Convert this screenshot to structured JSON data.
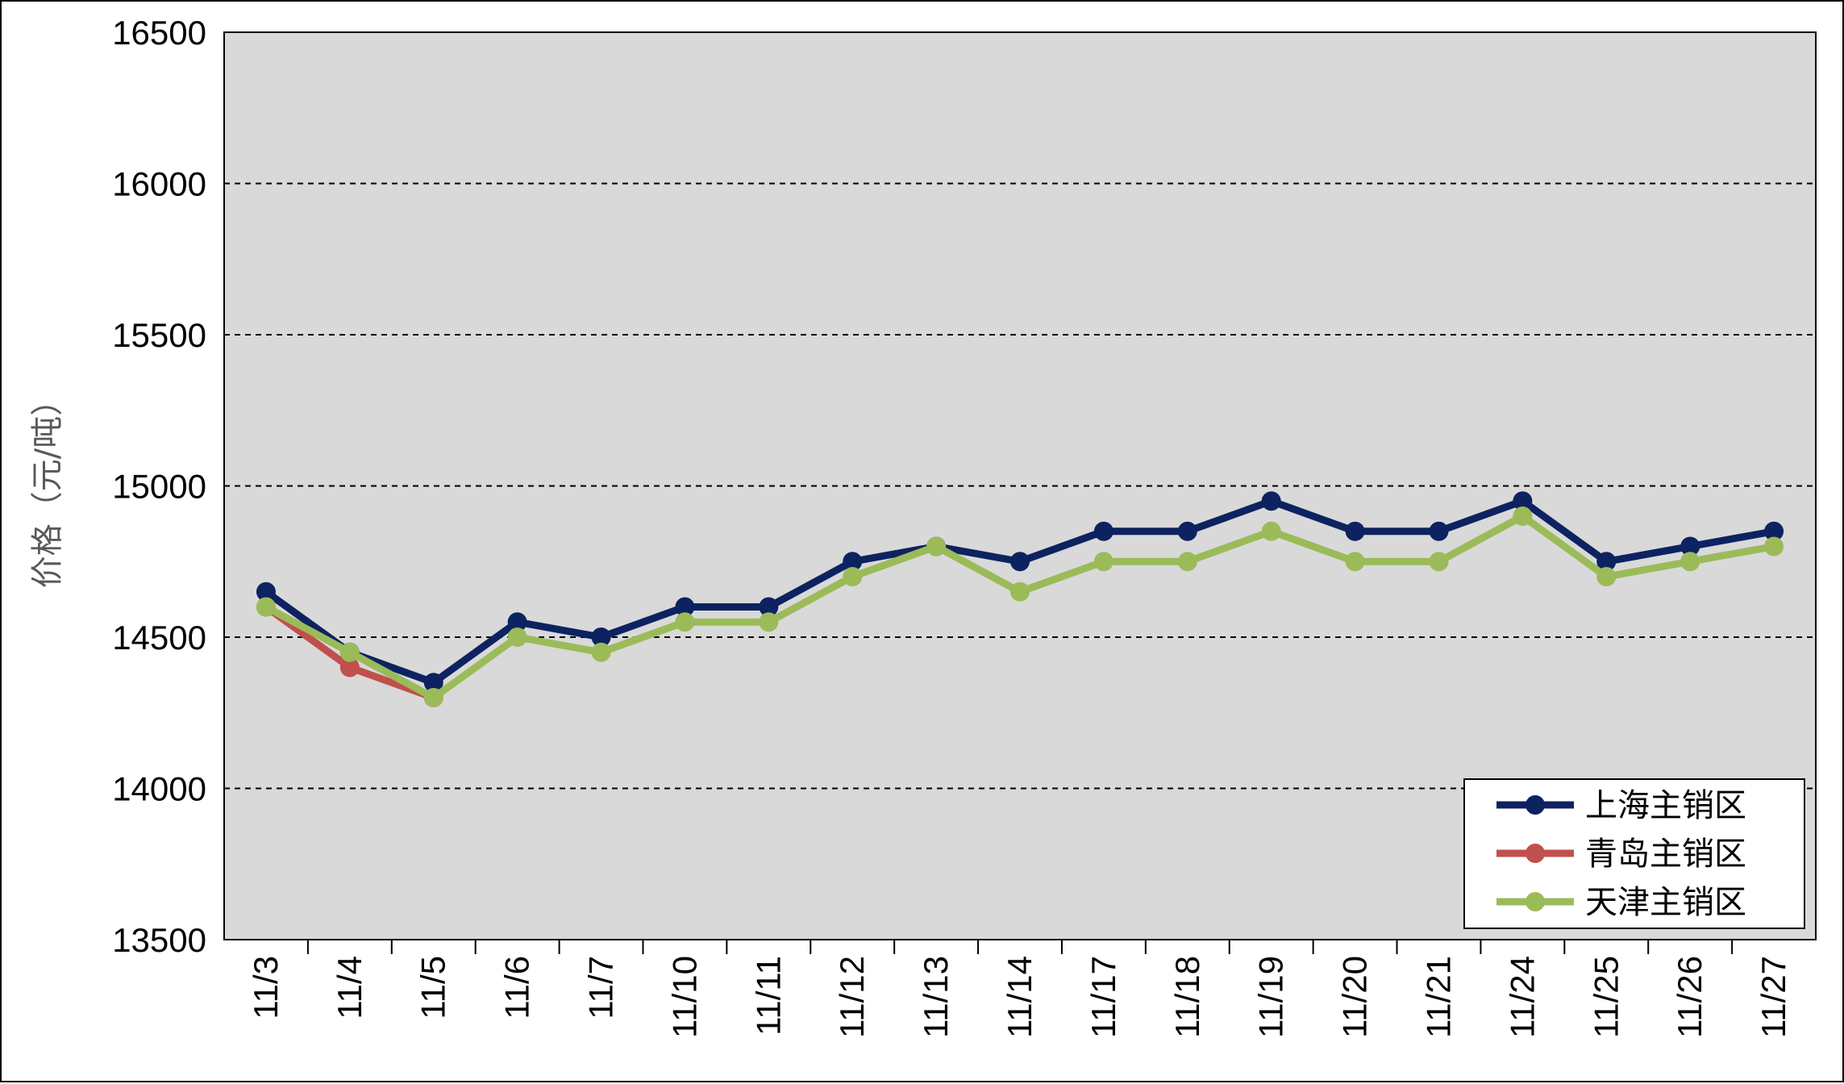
{
  "chart_data": {
    "type": "line",
    "ylabel": "价格（元/吨）",
    "xlabel": "",
    "ylim": [
      13500,
      16500
    ],
    "yticks": [
      13500,
      14000,
      14500,
      15000,
      15500,
      16000,
      16500
    ],
    "grid": "horizontal-dashed",
    "legend_position": "bottom-right",
    "categories": [
      "11/3",
      "11/4",
      "11/5",
      "11/6",
      "11/7",
      "11/10",
      "11/11",
      "11/12",
      "11/13",
      "11/14",
      "11/17",
      "11/18",
      "11/19",
      "11/20",
      "11/21",
      "11/24",
      "11/25",
      "11/26",
      "11/27"
    ],
    "series": [
      {
        "name": "上海主销区",
        "color": "#0d2260",
        "values": [
          14650,
          14450,
          14350,
          14550,
          14500,
          14600,
          14600,
          14750,
          14800,
          14750,
          14850,
          14850,
          14950,
          14850,
          14850,
          14950,
          14750,
          14800,
          14850
        ]
      },
      {
        "name": "青岛主销区",
        "color": "#c0504d",
        "values": [
          14600,
          14400,
          14300,
          null,
          null,
          null,
          null,
          null,
          null,
          null,
          null,
          null,
          null,
          null,
          null,
          null,
          null,
          null,
          null
        ]
      },
      {
        "name": "天津主销区",
        "color": "#9bbb59",
        "values": [
          14600,
          14450,
          14300,
          14500,
          14450,
          14550,
          14550,
          14700,
          14800,
          14650,
          14750,
          14750,
          14850,
          14750,
          14750,
          14900,
          14700,
          14750,
          14800
        ]
      }
    ]
  },
  "colors": {
    "plot_background": "#d9d9d9",
    "frame": "#000000"
  }
}
